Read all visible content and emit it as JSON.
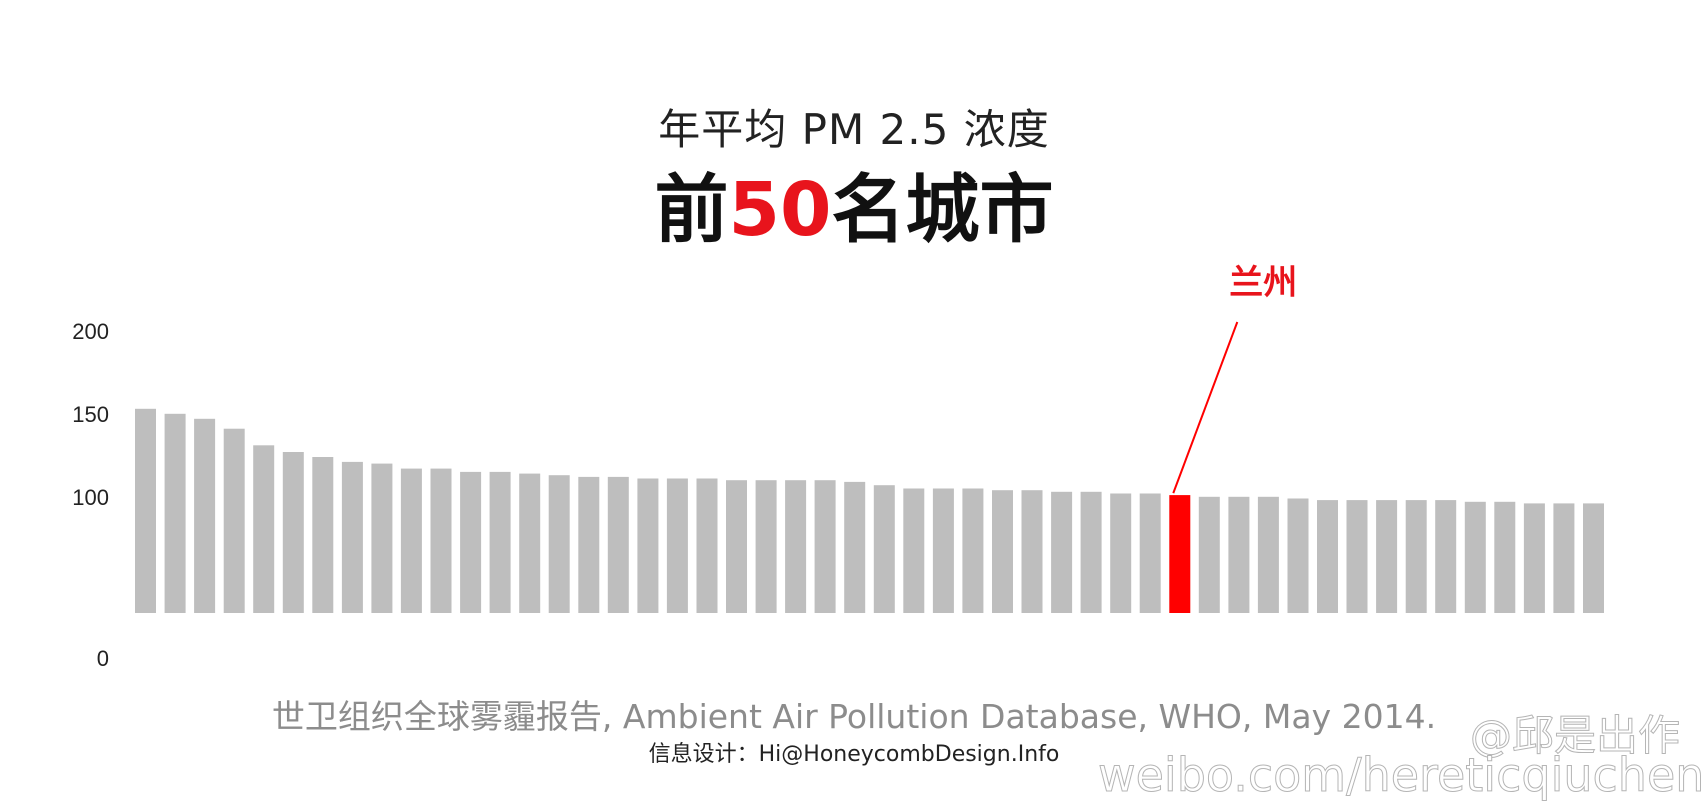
{
  "header": {
    "subtitle": "年平均 PM 2.5 浓度",
    "title_prefix": "前",
    "title_number": "50",
    "title_suffix": "名城市"
  },
  "footer": {
    "source": "世卫组织全球雾霾报告, Ambient Air Pollution Database, WHO, May 2014.",
    "credit": "信息设计：Hi@HoneycombDesign.Info"
  },
  "watermark": {
    "handle": "@邱是出作",
    "url": "weibo.com/hereticqiuchen"
  },
  "colors": {
    "bar": "#bebebe",
    "highlight": "#ff0000",
    "accent_text": "#e8141c"
  },
  "chart_data": {
    "type": "bar",
    "ylim": [
      0,
      200
    ],
    "yticks": [
      0,
      100,
      150,
      200
    ],
    "grid": false,
    "values": [
      153,
      150,
      147,
      141,
      131,
      127,
      124,
      121,
      120,
      117,
      117,
      115,
      115,
      114,
      113,
      112,
      112,
      111,
      111,
      111,
      110,
      110,
      110,
      110,
      109,
      107,
      105,
      105,
      105,
      104,
      104,
      103,
      103,
      102,
      102,
      101,
      100,
      100,
      100,
      99,
      98,
      98,
      98,
      98,
      98,
      97,
      97,
      96,
      96,
      96
    ],
    "highlight_index": 35,
    "highlight_label": "兰州"
  }
}
